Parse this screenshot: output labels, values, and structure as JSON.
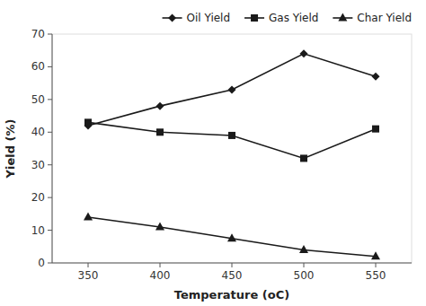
{
  "chart_data": {
    "type": "line",
    "x": [
      350,
      400,
      450,
      500,
      550
    ],
    "xlabel": "Temperature (oC)",
    "ylabel": "Yield (%)",
    "xlim": [
      325,
      575
    ],
    "ylim": [
      0,
      70
    ],
    "xticks": [
      350,
      400,
      450,
      500,
      550
    ],
    "yticks": [
      0,
      10,
      20,
      30,
      40,
      50,
      60,
      70
    ],
    "series": [
      {
        "name": "Oil Yield",
        "color": "#1a1a1a",
        "marker": "diamond",
        "values": [
          42,
          48,
          53,
          64,
          57
        ]
      },
      {
        "name": "Gas Yield",
        "color": "#1a1a1a",
        "marker": "square",
        "values": [
          43,
          40,
          39,
          32,
          41
        ]
      },
      {
        "name": "Char Yield",
        "color": "#1a1a1a",
        "marker": "triangle",
        "values": [
          14,
          11,
          7.5,
          4,
          2
        ]
      }
    ],
    "grid": false,
    "legend": "upper right"
  }
}
